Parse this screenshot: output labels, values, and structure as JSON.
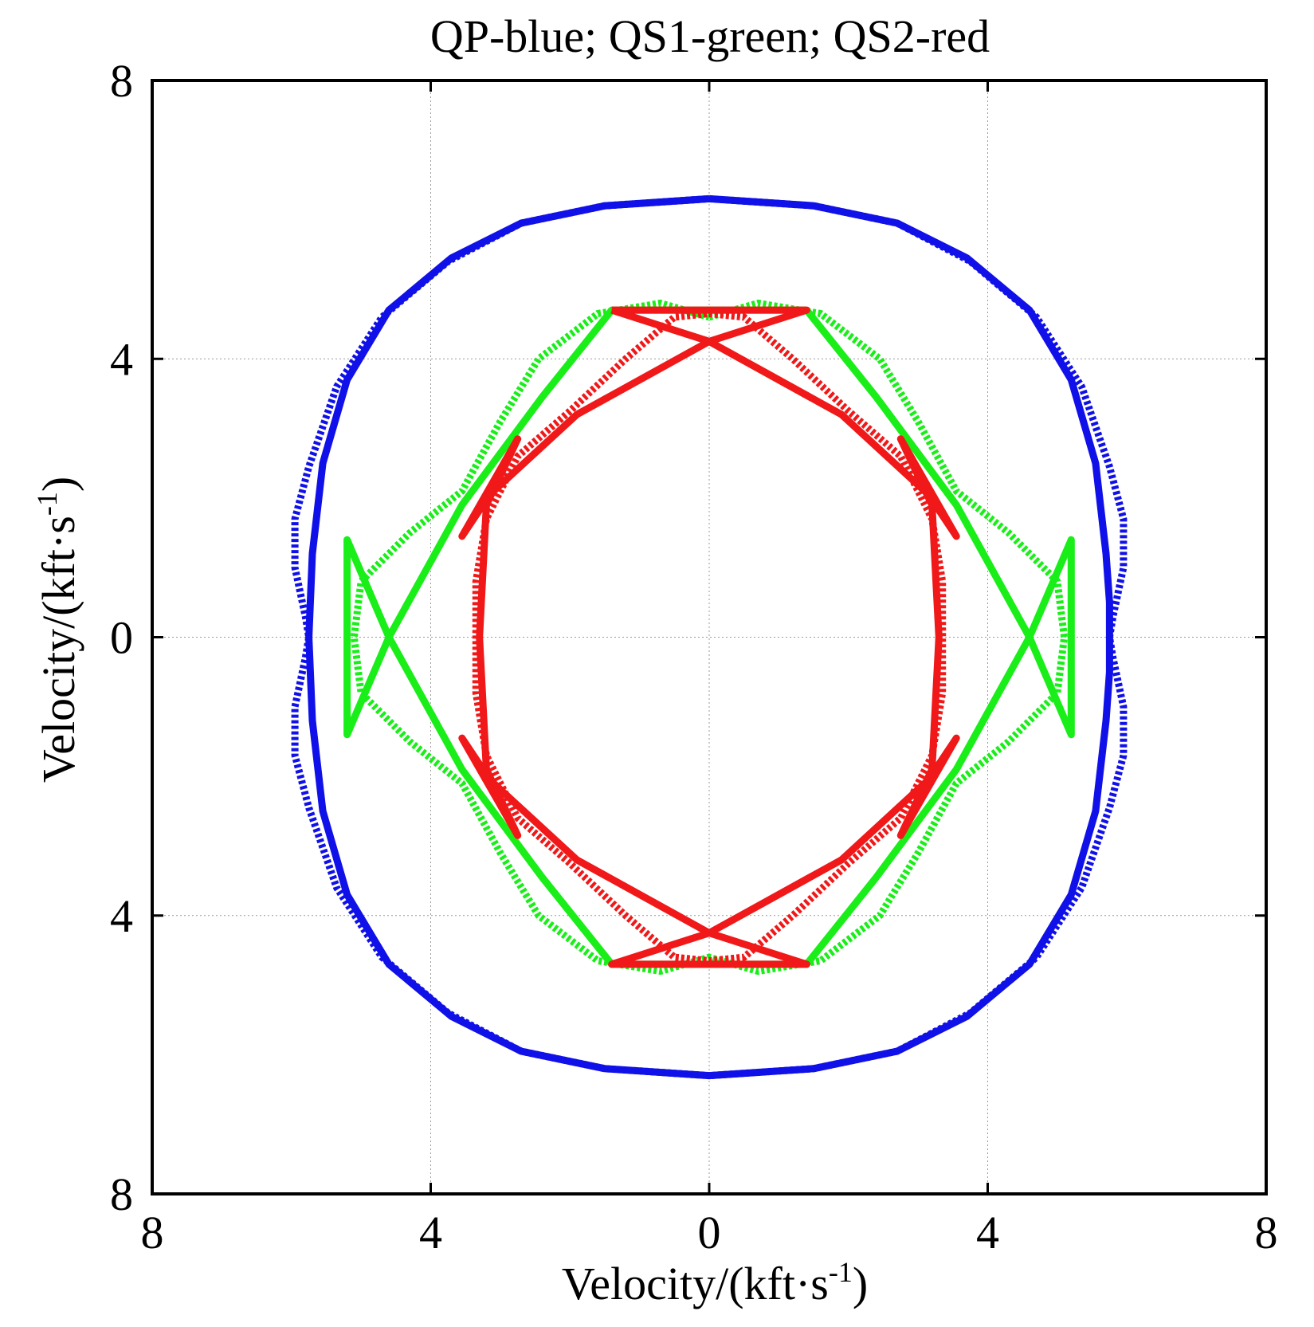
{
  "chart_data": {
    "type": "line",
    "title": "QP-blue; QS1-green; QS2-red",
    "xlabel": "Velocity/(kft·s",
    "xlabel_sup": "-1",
    "xlabel_end": ")",
    "ylabel": "Velocity/(kft·s",
    "ylabel_sup": "-1",
    "ylabel_end": ")",
    "xlim": [
      -8,
      8
    ],
    "ylim": [
      -8,
      8
    ],
    "grid": true,
    "ticks": [
      -8,
      -4,
      0,
      4,
      8
    ],
    "x_tick_labels": [
      "8",
      "4",
      "0",
      "4",
      "8"
    ],
    "y_tick_labels": [
      "8",
      "4",
      "0",
      "4",
      "8"
    ],
    "colors": {
      "qp": "#1010e8",
      "qs1": "#19ee19",
      "qs2": "#f01818",
      "frame": "#000000"
    },
    "series": [
      {
        "name": "QP solid",
        "color": "#1010e8",
        "style": "solid",
        "points": [
          [
            0,
            6.3
          ],
          [
            1.5,
            6.2
          ],
          [
            2.7,
            5.95
          ],
          [
            3.7,
            5.45
          ],
          [
            4.6,
            4.7
          ],
          [
            5.2,
            3.7
          ],
          [
            5.55,
            2.5
          ],
          [
            5.7,
            1.2
          ],
          [
            5.75,
            0.5
          ],
          [
            5.75,
            0
          ],
          [
            5.75,
            -0.5
          ],
          [
            5.7,
            -1.2
          ],
          [
            5.55,
            -2.5
          ],
          [
            5.2,
            -3.7
          ],
          [
            4.6,
            -4.7
          ],
          [
            3.7,
            -5.45
          ],
          [
            2.7,
            -5.95
          ],
          [
            1.5,
            -6.2
          ],
          [
            0,
            -6.3
          ],
          [
            -1.5,
            -6.2
          ],
          [
            -2.7,
            -5.95
          ],
          [
            -3.7,
            -5.45
          ],
          [
            -4.6,
            -4.7
          ],
          [
            -5.2,
            -3.7
          ],
          [
            -5.55,
            -2.5
          ],
          [
            -5.7,
            -1.2
          ],
          [
            -5.75,
            0
          ],
          [
            -5.7,
            1.2
          ],
          [
            -5.55,
            2.5
          ],
          [
            -5.2,
            3.7
          ],
          [
            -4.6,
            4.7
          ],
          [
            -3.7,
            5.45
          ],
          [
            -2.7,
            5.95
          ],
          [
            -1.5,
            6.2
          ],
          [
            0,
            6.3
          ]
        ]
      },
      {
        "name": "QP dotted",
        "color": "#1010e8",
        "style": "dotted",
        "points": [
          [
            0,
            6.3
          ],
          [
            1.5,
            6.2
          ],
          [
            2.7,
            5.95
          ],
          [
            3.75,
            5.4
          ],
          [
            4.7,
            4.6
          ],
          [
            5.35,
            3.6
          ],
          [
            5.75,
            2.45
          ],
          [
            5.95,
            1.7
          ],
          [
            5.95,
            1.0
          ],
          [
            5.8,
            0.3
          ],
          [
            5.75,
            0
          ],
          [
            5.8,
            -0.3
          ],
          [
            5.95,
            -1.0
          ],
          [
            5.95,
            -1.7
          ],
          [
            5.75,
            -2.45
          ],
          [
            5.35,
            -3.6
          ],
          [
            4.7,
            -4.6
          ],
          [
            3.75,
            -5.4
          ],
          [
            2.7,
            -5.95
          ],
          [
            1.5,
            -6.2
          ],
          [
            0,
            -6.3
          ],
          [
            -1.5,
            -6.2
          ],
          [
            -2.7,
            -5.95
          ],
          [
            -3.75,
            -5.4
          ],
          [
            -4.7,
            -4.6
          ],
          [
            -5.35,
            -3.6
          ],
          [
            -5.75,
            -2.45
          ],
          [
            -5.95,
            -1.7
          ],
          [
            -5.95,
            -1.0
          ],
          [
            -5.8,
            -0.3
          ],
          [
            -5.75,
            0
          ],
          [
            -5.8,
            0.3
          ],
          [
            -5.95,
            1.0
          ],
          [
            -5.95,
            1.7
          ],
          [
            -5.75,
            2.45
          ],
          [
            -5.35,
            3.6
          ],
          [
            -4.7,
            4.6
          ],
          [
            -3.75,
            5.4
          ],
          [
            -2.7,
            5.95
          ],
          [
            -1.5,
            6.2
          ],
          [
            0,
            6.3
          ]
        ]
      },
      {
        "name": "QS1 solid",
        "color": "#19ee19",
        "style": "solid",
        "points": [
          [
            1.4,
            4.7
          ],
          [
            2.4,
            3.45
          ],
          [
            3.55,
            1.9
          ],
          [
            4.6,
            0
          ],
          [
            5.2,
            -1.4
          ],
          [
            5.2,
            1.4
          ],
          [
            4.6,
            0
          ],
          [
            3.55,
            -1.9
          ],
          [
            2.4,
            -3.45
          ],
          [
            1.4,
            -4.7
          ],
          [
            0,
            -4.7
          ],
          [
            -1.4,
            -4.7
          ],
          [
            -2.4,
            -3.45
          ],
          [
            -3.55,
            -1.9
          ],
          [
            -4.6,
            0
          ],
          [
            -5.2,
            1.4
          ],
          [
            -5.2,
            -1.4
          ],
          [
            -4.6,
            0
          ],
          [
            -3.55,
            1.9
          ],
          [
            -2.4,
            3.45
          ],
          [
            -1.4,
            4.7
          ],
          [
            0,
            4.7
          ],
          [
            1.4,
            4.7
          ]
        ]
      },
      {
        "name": "QS1 dotted",
        "color": "#19ee19",
        "style": "dotted",
        "points": [
          [
            0,
            4.6
          ],
          [
            0.7,
            4.8
          ],
          [
            1.6,
            4.65
          ],
          [
            2.45,
            4.0
          ],
          [
            3.0,
            3.1
          ],
          [
            3.55,
            2.1
          ],
          [
            4.3,
            1.5
          ],
          [
            5.0,
            0.8
          ],
          [
            5.1,
            0
          ],
          [
            5.0,
            -0.8
          ],
          [
            4.3,
            -1.5
          ],
          [
            3.55,
            -2.1
          ],
          [
            3.0,
            -3.1
          ],
          [
            2.45,
            -4.0
          ],
          [
            1.6,
            -4.65
          ],
          [
            0.7,
            -4.8
          ],
          [
            0,
            -4.6
          ],
          [
            -0.7,
            -4.8
          ],
          [
            -1.6,
            -4.65
          ],
          [
            -2.45,
            -4.0
          ],
          [
            -3.0,
            -3.1
          ],
          [
            -3.55,
            -2.1
          ],
          [
            -4.3,
            -1.5
          ],
          [
            -5.0,
            -0.8
          ],
          [
            -5.1,
            0
          ],
          [
            -5.0,
            0.8
          ],
          [
            -4.3,
            1.5
          ],
          [
            -3.55,
            2.1
          ],
          [
            -3.0,
            3.1
          ],
          [
            -2.45,
            4.0
          ],
          [
            -1.6,
            4.65
          ],
          [
            -0.7,
            4.8
          ],
          [
            0,
            4.6
          ]
        ]
      },
      {
        "name": "QS2 solid",
        "color": "#f01818",
        "style": "solid",
        "points": [
          [
            -1.4,
            4.7
          ],
          [
            0,
            4.25
          ],
          [
            1.9,
            3.2
          ],
          [
            3.15,
            2.05
          ],
          [
            3.55,
            1.45
          ],
          [
            2.75,
            2.85
          ],
          [
            3.2,
            1.9
          ],
          [
            3.3,
            0
          ],
          [
            3.2,
            -1.9
          ],
          [
            2.75,
            -2.85
          ],
          [
            3.55,
            -1.45
          ],
          [
            3.15,
            -2.05
          ],
          [
            1.9,
            -3.2
          ],
          [
            0,
            -4.25
          ],
          [
            -1.4,
            -4.7
          ],
          [
            1.4,
            -4.7
          ],
          [
            0,
            -4.25
          ],
          [
            -1.9,
            -3.2
          ],
          [
            -3.15,
            -2.05
          ],
          [
            -3.55,
            -1.45
          ],
          [
            -2.75,
            -2.85
          ],
          [
            -3.2,
            -1.9
          ],
          [
            -3.3,
            0
          ],
          [
            -3.2,
            1.9
          ],
          [
            -2.75,
            2.85
          ],
          [
            -3.55,
            1.45
          ],
          [
            -3.15,
            2.05
          ],
          [
            -1.9,
            3.2
          ],
          [
            0,
            4.25
          ],
          [
            1.4,
            4.7
          ],
          [
            -1.4,
            4.7
          ]
        ]
      },
      {
        "name": "QS2 dotted",
        "color": "#f01818",
        "style": "dotted",
        "points": [
          [
            0,
            4.65
          ],
          [
            0.5,
            4.6
          ],
          [
            1.2,
            4.0
          ],
          [
            2.0,
            3.25
          ],
          [
            2.75,
            2.6
          ],
          [
            3.2,
            1.7
          ],
          [
            3.35,
            0.8
          ],
          [
            3.35,
            0
          ],
          [
            3.35,
            -0.8
          ],
          [
            3.2,
            -1.7
          ],
          [
            2.75,
            -2.6
          ],
          [
            2.0,
            -3.25
          ],
          [
            1.2,
            -4.0
          ],
          [
            0.5,
            -4.6
          ],
          [
            0,
            -4.65
          ],
          [
            -0.5,
            -4.6
          ],
          [
            -1.2,
            -4.0
          ],
          [
            -2.0,
            -3.25
          ],
          [
            -2.75,
            -2.6
          ],
          [
            -3.2,
            -1.7
          ],
          [
            -3.35,
            -0.8
          ],
          [
            -3.35,
            0
          ],
          [
            -3.35,
            0.8
          ],
          [
            -3.2,
            1.7
          ],
          [
            -2.75,
            2.6
          ],
          [
            -2.0,
            3.25
          ],
          [
            -1.2,
            4.0
          ],
          [
            -0.5,
            4.6
          ],
          [
            0,
            4.65
          ]
        ]
      }
    ]
  }
}
